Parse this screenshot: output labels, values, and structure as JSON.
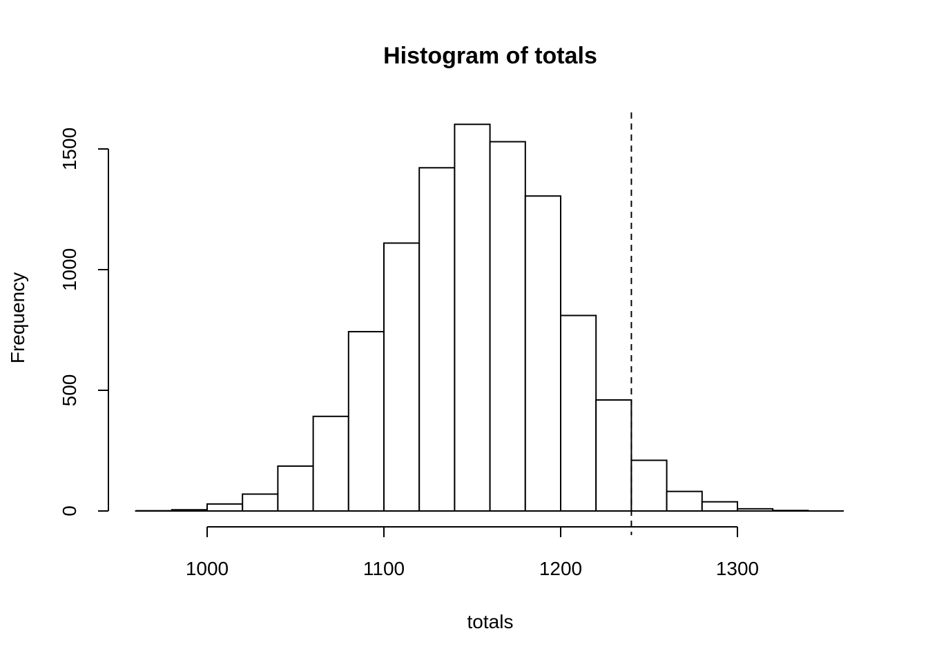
{
  "chart_data": {
    "type": "bar",
    "subtype": "histogram",
    "title": "Histogram of totals",
    "xlabel": "totals",
    "ylabel": "Frequency",
    "bin_width": 20,
    "bins": [
      {
        "start": 960,
        "end": 980,
        "count": 1
      },
      {
        "start": 980,
        "end": 1000,
        "count": 5
      },
      {
        "start": 1000,
        "end": 1020,
        "count": 29
      },
      {
        "start": 1020,
        "end": 1040,
        "count": 70
      },
      {
        "start": 1040,
        "end": 1060,
        "count": 186
      },
      {
        "start": 1060,
        "end": 1080,
        "count": 392
      },
      {
        "start": 1080,
        "end": 1100,
        "count": 743
      },
      {
        "start": 1100,
        "end": 1120,
        "count": 1110
      },
      {
        "start": 1120,
        "end": 1140,
        "count": 1422
      },
      {
        "start": 1140,
        "end": 1160,
        "count": 1602
      },
      {
        "start": 1160,
        "end": 1180,
        "count": 1530
      },
      {
        "start": 1180,
        "end": 1200,
        "count": 1305
      },
      {
        "start": 1200,
        "end": 1220,
        "count": 810
      },
      {
        "start": 1220,
        "end": 1240,
        "count": 460
      },
      {
        "start": 1240,
        "end": 1260,
        "count": 210
      },
      {
        "start": 1260,
        "end": 1280,
        "count": 81
      },
      {
        "start": 1280,
        "end": 1300,
        "count": 38
      },
      {
        "start": 1300,
        "end": 1320,
        "count": 9
      },
      {
        "start": 1320,
        "end": 1340,
        "count": 2
      },
      {
        "start": 1340,
        "end": 1360,
        "count": 0
      }
    ],
    "reference_line": {
      "x": 1240,
      "style": "dashed"
    },
    "xlim": [
      960,
      1360
    ],
    "ylim": [
      0,
      1650
    ],
    "x_ticks": [
      1000,
      1100,
      1200,
      1300
    ],
    "x_tick_labels": [
      "1000",
      "1100",
      "1200",
      "1300"
    ],
    "y_ticks": [
      0,
      500,
      1000,
      1500
    ],
    "y_tick_labels": [
      "0",
      "500",
      "1000",
      "1500"
    ],
    "grid": false,
    "legend": "none",
    "colors": {
      "bar_fill": "#ffffff",
      "bar_stroke": "#000000",
      "background": "#ffffff"
    }
  }
}
